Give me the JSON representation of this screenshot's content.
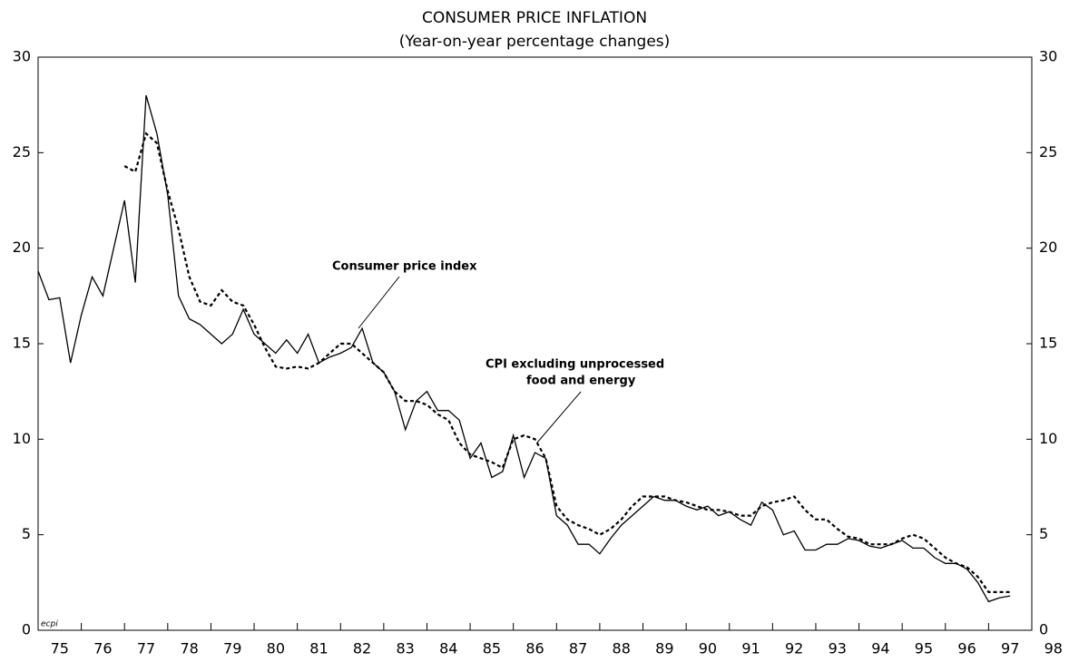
{
  "chart_data": {
    "type": "line",
    "title": "CONSUMER PRICE INFLATION",
    "subtitle": "(Year-on-year percentage changes)",
    "annotations": [
      "Consumer price index",
      "CPI excluding unprocessed",
      "food and energy",
      "ecpi"
    ],
    "x": [
      75,
      75.25,
      75.5,
      75.75,
      76,
      76.25,
      76.5,
      76.75,
      77,
      77.25,
      77.5,
      77.75,
      78,
      78.25,
      78.5,
      78.75,
      79,
      79.25,
      79.5,
      79.75,
      80,
      80.25,
      80.5,
      80.75,
      81,
      81.25,
      81.5,
      81.75,
      82,
      82.25,
      82.5,
      82.75,
      83,
      83.25,
      83.5,
      83.75,
      84,
      84.25,
      84.5,
      84.75,
      85,
      85.25,
      85.5,
      85.75,
      86,
      86.25,
      86.5,
      86.75,
      87,
      87.25,
      87.5,
      87.75,
      88,
      88.25,
      88.5,
      88.75,
      89,
      89.25,
      89.5,
      89.75,
      90,
      90.25,
      90.5,
      90.75,
      91,
      91.25,
      91.5,
      91.75,
      92,
      92.25,
      92.5,
      92.75,
      93,
      93.25,
      93.5,
      93.75,
      94,
      94.25,
      94.5,
      94.75,
      95,
      95.25,
      95.5,
      95.75,
      96,
      96.25,
      96.5,
      96.75,
      97,
      97.25,
      97.5
    ],
    "series": [
      {
        "name": "Consumer price index",
        "color": "#000000",
        "dash": false,
        "values": [
          18.8,
          17.3,
          17.4,
          14.0,
          16.5,
          18.5,
          17.5,
          20.0,
          22.5,
          18.2,
          28.0,
          26.0,
          22.8,
          17.5,
          16.3,
          16.0,
          15.5,
          15.0,
          15.5,
          16.8,
          15.5,
          15.0,
          14.5,
          15.2,
          14.5,
          15.5,
          14.0,
          14.3,
          14.5,
          14.8,
          15.8,
          14.0,
          13.5,
          12.5,
          10.5,
          12.0,
          12.5,
          11.5,
          11.5,
          11.0,
          9.0,
          9.8,
          8.0,
          8.3,
          10.2,
          8.0,
          9.3,
          9.0,
          6.0,
          5.5,
          4.5,
          4.5,
          4.0,
          4.8,
          5.5,
          6.0,
          6.5,
          7.0,
          6.8,
          6.8,
          6.5,
          6.3,
          6.5,
          6.0,
          6.2,
          5.8,
          5.5,
          6.7,
          6.3,
          5.0,
          5.2,
          4.2,
          4.2,
          4.5,
          4.5,
          4.8,
          4.7,
          4.4,
          4.3,
          4.5,
          4.7,
          4.3,
          4.3,
          3.8,
          3.5,
          3.5,
          3.2,
          2.5,
          1.5,
          1.7,
          1.8
        ]
      },
      {
        "name": "CPI excluding unprocessed food and energy",
        "color": "#000000",
        "dash": true,
        "values": [
          null,
          null,
          null,
          null,
          null,
          null,
          null,
          null,
          24.3,
          24.0,
          26.0,
          25.5,
          23.0,
          21.0,
          18.5,
          17.2,
          17.0,
          17.8,
          17.2,
          17.0,
          16.0,
          14.8,
          13.8,
          13.7,
          13.8,
          13.7,
          14.0,
          14.5,
          15.0,
          15.0,
          14.5,
          14.0,
          13.5,
          12.5,
          12.0,
          12.0,
          11.8,
          11.3,
          11.0,
          9.8,
          9.2,
          9.0,
          8.8,
          8.5,
          10.0,
          10.2,
          10.0,
          9.0,
          6.5,
          5.8,
          5.5,
          5.3,
          5.0,
          5.3,
          5.8,
          6.5,
          7.0,
          7.0,
          7.0,
          6.8,
          6.7,
          6.5,
          6.3,
          6.3,
          6.2,
          6.0,
          6.0,
          6.5,
          6.7,
          6.8,
          7.0,
          6.3,
          5.8,
          5.8,
          5.3,
          4.9,
          4.8,
          4.5,
          4.5,
          4.5,
          4.8,
          5.0,
          4.8,
          4.3,
          3.8,
          3.5,
          3.3,
          2.8,
          2.0,
          2.0,
          2.0
        ]
      }
    ],
    "xlim": [
      75,
      98
    ],
    "xticks": [
      75,
      76,
      77,
      78,
      79,
      80,
      81,
      82,
      83,
      84,
      85,
      86,
      87,
      88,
      89,
      90,
      91,
      92,
      93,
      94,
      95,
      96,
      97,
      98
    ],
    "ylim": [
      0,
      30
    ],
    "yticks": [
      0,
      5,
      10,
      15,
      20,
      25,
      30
    ],
    "y2lim": [
      0,
      30
    ],
    "y2ticks": [
      0,
      5,
      10,
      15,
      20,
      25,
      30
    ],
    "grid": false
  }
}
